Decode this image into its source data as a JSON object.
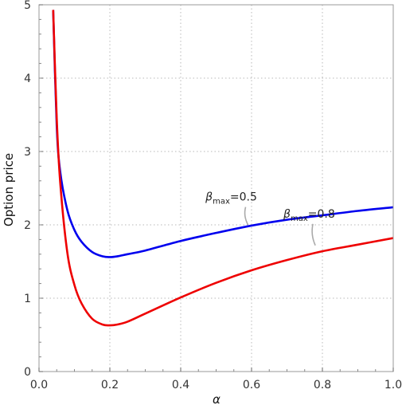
{
  "chart_data": {
    "type": "line",
    "xlabel": "α",
    "ylabel": "Option price",
    "xlim": [
      0.0,
      1.0
    ],
    "ylim": [
      0,
      5
    ],
    "xticks": [
      "0.0",
      "0.2",
      "0.4",
      "0.6",
      "0.8",
      "1.0"
    ],
    "yticks": [
      "0",
      "1",
      "2",
      "3",
      "4",
      "5"
    ],
    "grid": "dotted",
    "series": [
      {
        "color": "#0000ee",
        "x": [
          0.04,
          0.05,
          0.06,
          0.08,
          0.1,
          0.12,
          0.15,
          0.18,
          0.2,
          0.22,
          0.25,
          0.3,
          0.4,
          0.5,
          0.6,
          0.7,
          0.8,
          0.9,
          1.0
        ],
        "y": [
          4.93,
          3.35,
          2.72,
          2.2,
          1.93,
          1.77,
          1.63,
          1.57,
          1.56,
          1.57,
          1.6,
          1.65,
          1.78,
          1.89,
          1.99,
          2.07,
          2.13,
          2.19,
          2.24
        ]
      },
      {
        "color": "#ee0000",
        "x": [
          0.04,
          0.05,
          0.06,
          0.08,
          0.1,
          0.12,
          0.15,
          0.18,
          0.2,
          0.22,
          0.25,
          0.3,
          0.4,
          0.5,
          0.6,
          0.7,
          0.8,
          0.9,
          1.0
        ],
        "y": [
          4.93,
          3.45,
          2.57,
          1.62,
          1.18,
          0.93,
          0.72,
          0.64,
          0.63,
          0.64,
          0.68,
          0.79,
          1.01,
          1.21,
          1.38,
          1.52,
          1.64,
          1.73,
          1.82
        ]
      }
    ],
    "annotations": [
      {
        "prefix": "β",
        "subscript": "max",
        "suffix": "=0.5",
        "x": 0.47,
        "y": 2.33,
        "target": [
          0.59,
          2.0
        ]
      },
      {
        "prefix": "β",
        "subscript": "max",
        "suffix": "=0.8",
        "x": 0.69,
        "y": 2.1,
        "target": [
          0.78,
          1.72
        ]
      }
    ]
  }
}
